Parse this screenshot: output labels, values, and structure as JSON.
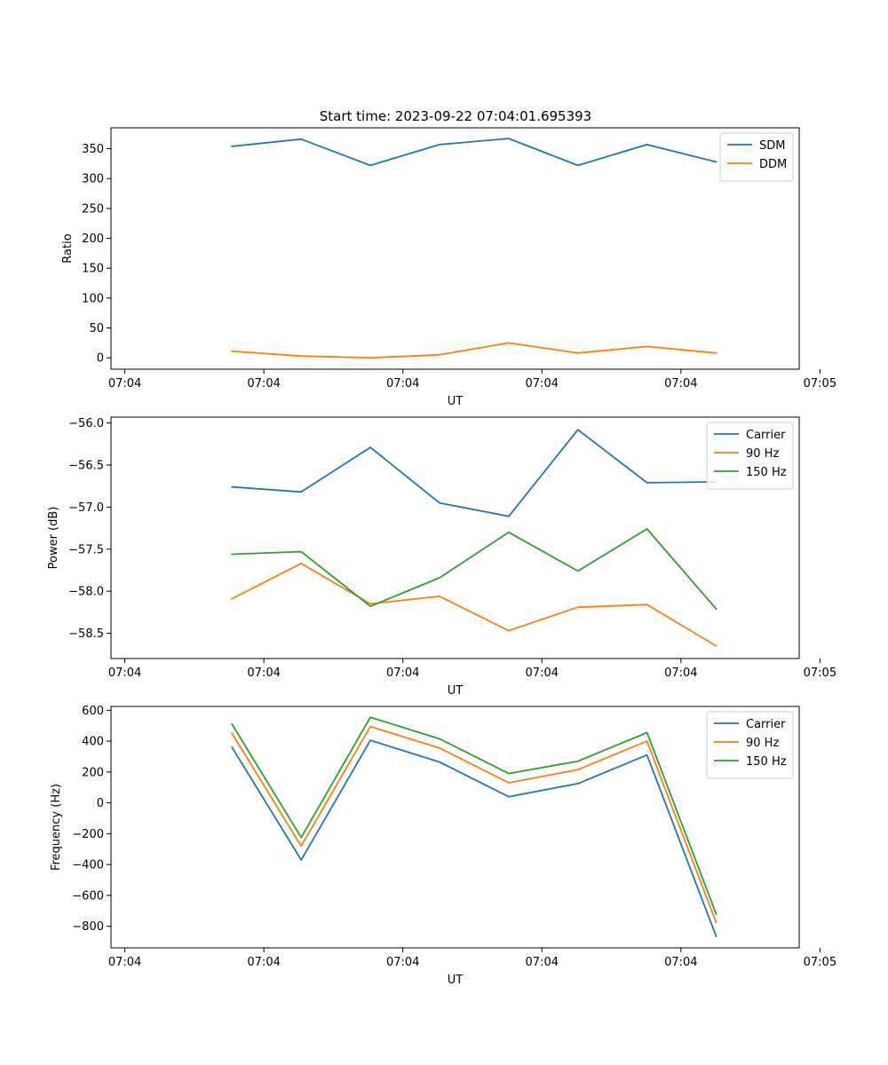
{
  "figure": {
    "title": "Start time: 2023-09-22 07:04:01.695393"
  },
  "colors": {
    "series": [
      "#1f77b4",
      "#ff7f0e",
      "#2ca02c"
    ],
    "axes": "#000000",
    "legend_border": "#cccccc"
  },
  "chart_data": [
    {
      "type": "line",
      "title": "Start time: 2023-09-22 07:04:01.695393",
      "xlabel": "UT",
      "ylabel": "Ratio",
      "x": [
        1.0,
        2.0,
        3.0,
        4.0,
        5.0,
        6.0,
        7.0,
        8.0
      ],
      "xlim": [
        -0.75,
        9.2
      ],
      "xticks": [
        -0.55,
        1.46,
        3.47,
        5.48,
        7.49,
        9.5
      ],
      "xticklabels": [
        "07:04",
        "07:04",
        "07:04",
        "07:04",
        "07:04",
        "07:05"
      ],
      "ylim": [
        -19,
        385
      ],
      "yticks": [
        0,
        50,
        100,
        150,
        200,
        250,
        300,
        350
      ],
      "yticklabels": [
        "0",
        "50",
        "100",
        "150",
        "200",
        "250",
        "300",
        "350"
      ],
      "legend_position": "upper right",
      "series": [
        {
          "name": "SDM",
          "values": [
            354,
            366,
            322,
            357,
            367,
            322,
            357,
            328
          ]
        },
        {
          "name": "DDM",
          "values": [
            11,
            3,
            0,
            5,
            25,
            8,
            19,
            8
          ]
        }
      ]
    },
    {
      "type": "line",
      "title": "",
      "xlabel": "UT",
      "ylabel": "Power (dB)",
      "x": [
        1.0,
        2.0,
        3.0,
        4.0,
        5.0,
        6.0,
        7.0,
        8.0
      ],
      "xlim": [
        -0.75,
        9.2
      ],
      "xticks": [
        -0.55,
        1.46,
        3.47,
        5.48,
        7.49,
        9.5
      ],
      "xticklabels": [
        "07:04",
        "07:04",
        "07:04",
        "07:04",
        "07:04",
        "07:05"
      ],
      "ylim": [
        -58.8,
        -55.93
      ],
      "yticks": [
        -58.5,
        -58.0,
        -57.5,
        -57.0,
        -56.5,
        -56.0
      ],
      "yticklabels": [
        "−58.5",
        "−58.0",
        "−57.5",
        "−57.0",
        "−56.5",
        "−56.0"
      ],
      "legend_position": "upper right",
      "series": [
        {
          "name": "Carrier",
          "values": [
            -56.76,
            -56.82,
            -56.29,
            -56.95,
            -57.11,
            -56.08,
            -56.71,
            -56.7
          ]
        },
        {
          "name": "90 Hz",
          "values": [
            -58.09,
            -57.67,
            -58.15,
            -58.06,
            -58.47,
            -58.19,
            -58.16,
            -58.65
          ]
        },
        {
          "name": "150 Hz",
          "values": [
            -57.56,
            -57.53,
            -58.18,
            -57.84,
            -57.3,
            -57.76,
            -57.26,
            -58.21
          ]
        }
      ]
    },
    {
      "type": "line",
      "title": "",
      "xlabel": "UT",
      "ylabel": "Frequency (Hz)",
      "x": [
        1.0,
        2.0,
        3.0,
        4.0,
        5.0,
        6.0,
        7.0,
        8.0
      ],
      "xlim": [
        -0.75,
        9.2
      ],
      "xticks": [
        -0.55,
        1.46,
        3.47,
        5.48,
        7.49,
        9.5
      ],
      "xticklabels": [
        "07:04",
        "07:04",
        "07:04",
        "07:04",
        "07:04",
        "07:05"
      ],
      "ylim": [
        -940,
        625
      ],
      "yticks": [
        -800,
        -600,
        -400,
        -200,
        0,
        200,
        400,
        600
      ],
      "yticklabels": [
        "−800",
        "−600",
        "−400",
        "−200",
        "0",
        "200",
        "400",
        "600"
      ],
      "legend_position": "upper right",
      "series": [
        {
          "name": "Carrier",
          "values": [
            360,
            -370,
            405,
            265,
            40,
            125,
            310,
            -865
          ]
        },
        {
          "name": "90 Hz",
          "values": [
            450,
            -280,
            495,
            355,
            130,
            215,
            400,
            -775
          ]
        },
        {
          "name": "150 Hz",
          "values": [
            510,
            -225,
            555,
            415,
            190,
            270,
            455,
            -720
          ]
        }
      ]
    }
  ]
}
